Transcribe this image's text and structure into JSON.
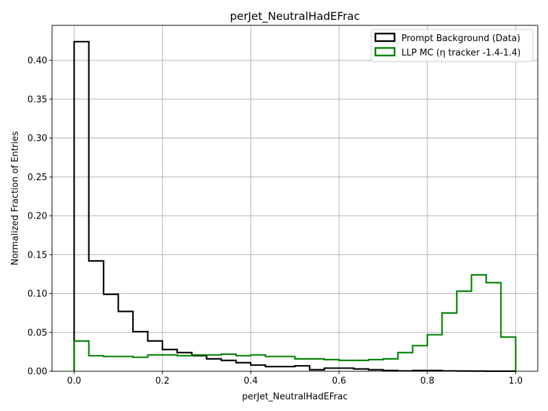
{
  "chart_data": {
    "type": "step-histogram",
    "title": "perJet_NeutralHadEFrac",
    "xlabel": "perJet_NeutralHadEFrac",
    "ylabel": "Normalized Fraction of Entries",
    "xlim": [
      -0.05,
      1.05
    ],
    "ylim": [
      0.0,
      0.445
    ],
    "xticks": [
      "0.0",
      "0.2",
      "0.4",
      "0.6",
      "0.8",
      "1.0"
    ],
    "yticks": [
      "0.00",
      "0.05",
      "0.10",
      "0.15",
      "0.20",
      "0.25",
      "0.30",
      "0.35",
      "0.40"
    ],
    "grid": true,
    "legend_position": "top-right",
    "bin_edges": [
      0.0,
      0.0333,
      0.0667,
      0.1,
      0.1333,
      0.1667,
      0.2,
      0.2333,
      0.2667,
      0.3,
      0.3333,
      0.3667,
      0.4,
      0.4333,
      0.4667,
      0.5,
      0.5333,
      0.5667,
      0.6,
      0.6333,
      0.6667,
      0.7,
      0.7333,
      0.7667,
      0.8,
      0.8333,
      0.8667,
      0.9,
      0.9333,
      0.9667,
      1.0
    ],
    "series": [
      {
        "name": "Prompt Background (Data)",
        "color": "#000000",
        "values": [
          0.424,
          0.142,
          0.099,
          0.077,
          0.051,
          0.039,
          0.028,
          0.024,
          0.02,
          0.016,
          0.014,
          0.011,
          0.008,
          0.006,
          0.006,
          0.007,
          0.002,
          0.004,
          0.004,
          0.003,
          0.002,
          0.001,
          0.0005,
          0.001,
          0.001,
          0.0005,
          0.0003,
          0.0002,
          0.0001,
          0.0001
        ]
      },
      {
        "name": "LLP MC (η tracker -1.4-1.4)",
        "color": "#008000",
        "values": [
          0.039,
          0.02,
          0.019,
          0.019,
          0.018,
          0.021,
          0.021,
          0.02,
          0.021,
          0.021,
          0.022,
          0.02,
          0.021,
          0.019,
          0.019,
          0.016,
          0.016,
          0.015,
          0.014,
          0.014,
          0.015,
          0.016,
          0.024,
          0.033,
          0.047,
          0.075,
          0.103,
          0.124,
          0.114,
          0.044
        ]
      }
    ]
  }
}
